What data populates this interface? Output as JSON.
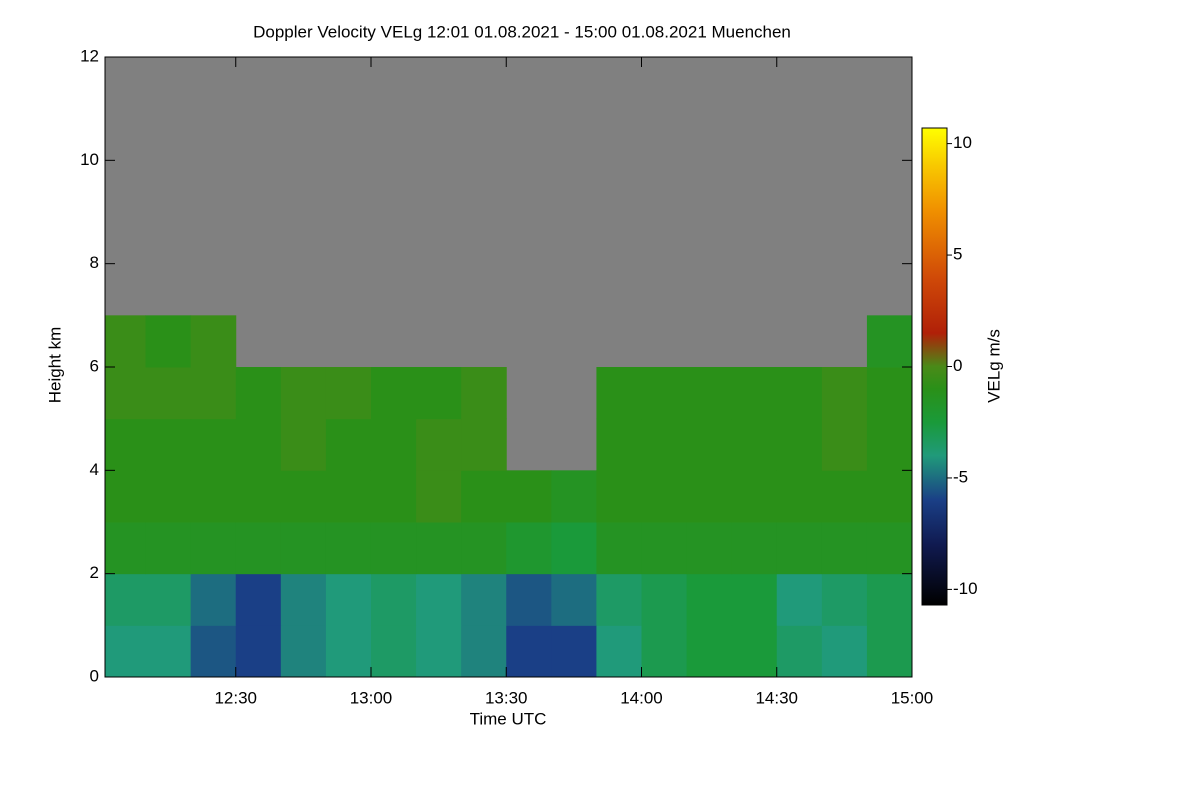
{
  "chart_data": {
    "type": "heatmap",
    "title": "Doppler Velocity VELg   12:01 01.08.2021 - 15:00 01.08.2021 Muenchen",
    "x_label": "Time UTC",
    "y_label": "Height km",
    "colorbar_label": "VELg m/s",
    "background": "#808080",
    "x_bins": [
      721,
      730,
      740,
      750,
      760,
      770,
      780,
      790,
      800,
      810,
      820,
      830,
      840,
      850,
      860,
      870,
      880,
      890,
      900
    ],
    "y_bins": [
      0,
      1,
      2,
      3,
      4,
      5,
      6,
      7,
      8,
      9,
      10,
      11,
      12
    ],
    "z": [
      [
        -4,
        -4,
        -5.5,
        -6,
        -4.5,
        -4,
        -3.5,
        -4,
        -4.5,
        -6,
        -6,
        -4,
        -3,
        -2.5,
        -2.5,
        -3.5,
        -4,
        -3
      ],
      [
        -3.5,
        -3.5,
        -5,
        -6,
        -4.5,
        -4,
        -3.5,
        -4,
        -4.5,
        -5.5,
        -5,
        -3.5,
        -3,
        -2.5,
        -2.5,
        -4,
        -3.5,
        -3
      ],
      [
        -1.5,
        -1.5,
        -1.5,
        -1.5,
        -1.5,
        -1.5,
        -1.5,
        -1.5,
        -1.5,
        -2,
        -2.5,
        -1.5,
        -1.5,
        -1.5,
        -1.5,
        -1.5,
        -1.5,
        -1.5
      ],
      [
        -1,
        -1,
        -1,
        -1,
        -1,
        -1,
        -1,
        -0.5,
        -1,
        -1,
        -1.5,
        -1,
        -1,
        -1,
        -1,
        -1,
        -1,
        -1
      ],
      [
        -1,
        -1,
        -1,
        -1,
        -0.5,
        -1,
        -1,
        -0.5,
        -0.5,
        null,
        null,
        -1,
        -1,
        -1,
        -1,
        -1,
        -0.5,
        -1
      ],
      [
        -0.5,
        -0.5,
        -0.5,
        -1,
        -0.5,
        -0.5,
        -1,
        -1,
        -0.5,
        null,
        null,
        -1,
        -1,
        -1,
        -1,
        -1,
        -0.5,
        -1
      ],
      [
        -0.5,
        -1,
        -0.5,
        null,
        null,
        null,
        null,
        null,
        null,
        null,
        null,
        null,
        null,
        null,
        null,
        null,
        null,
        -1.5
      ],
      [
        null,
        null,
        null,
        null,
        null,
        null,
        null,
        null,
        null,
        null,
        null,
        null,
        null,
        null,
        null,
        null,
        null,
        null
      ],
      [
        null,
        null,
        null,
        null,
        null,
        null,
        null,
        null,
        null,
        null,
        null,
        null,
        null,
        null,
        null,
        null,
        null,
        null
      ],
      [
        null,
        null,
        null,
        null,
        null,
        null,
        null,
        null,
        null,
        null,
        null,
        null,
        null,
        null,
        null,
        null,
        null,
        null
      ],
      [
        null,
        null,
        null,
        null,
        null,
        null,
        null,
        null,
        null,
        null,
        null,
        null,
        null,
        null,
        null,
        null,
        null,
        null
      ],
      [
        null,
        null,
        null,
        null,
        null,
        null,
        null,
        null,
        null,
        null,
        null,
        null,
        null,
        null,
        null,
        null,
        null,
        null
      ]
    ],
    "xlim": [
      721,
      900
    ],
    "xticks": [
      {
        "value": 750,
        "label": "12:30"
      },
      {
        "value": 780,
        "label": "13:00"
      },
      {
        "value": 810,
        "label": "13:30"
      },
      {
        "value": 840,
        "label": "14:00"
      },
      {
        "value": 870,
        "label": "14:30"
      },
      {
        "value": 900,
        "label": "15:00"
      }
    ],
    "ylim": [
      0,
      12
    ],
    "yticks": [
      0,
      2,
      4,
      6,
      8,
      10,
      12
    ],
    "zlim": [
      -10.7,
      10.7
    ],
    "zticks": [
      -10,
      -5,
      0,
      5,
      10
    ],
    "colormap": [
      {
        "value": -10.7,
        "color": "#000000"
      },
      {
        "value": -8,
        "color": "#101a50"
      },
      {
        "value": -6,
        "color": "#1a3f86"
      },
      {
        "value": -4,
        "color": "#209a7a"
      },
      {
        "value": -2.5,
        "color": "#1a9a3a"
      },
      {
        "value": -1,
        "color": "#2a9018"
      },
      {
        "value": 0,
        "color": "#4a8a18"
      },
      {
        "value": 1.5,
        "color": "#b02008"
      },
      {
        "value": 4,
        "color": "#d04a08"
      },
      {
        "value": 7,
        "color": "#f09000"
      },
      {
        "value": 9,
        "color": "#f8c800"
      },
      {
        "value": 10.7,
        "color": "#ffff00"
      }
    ]
  }
}
